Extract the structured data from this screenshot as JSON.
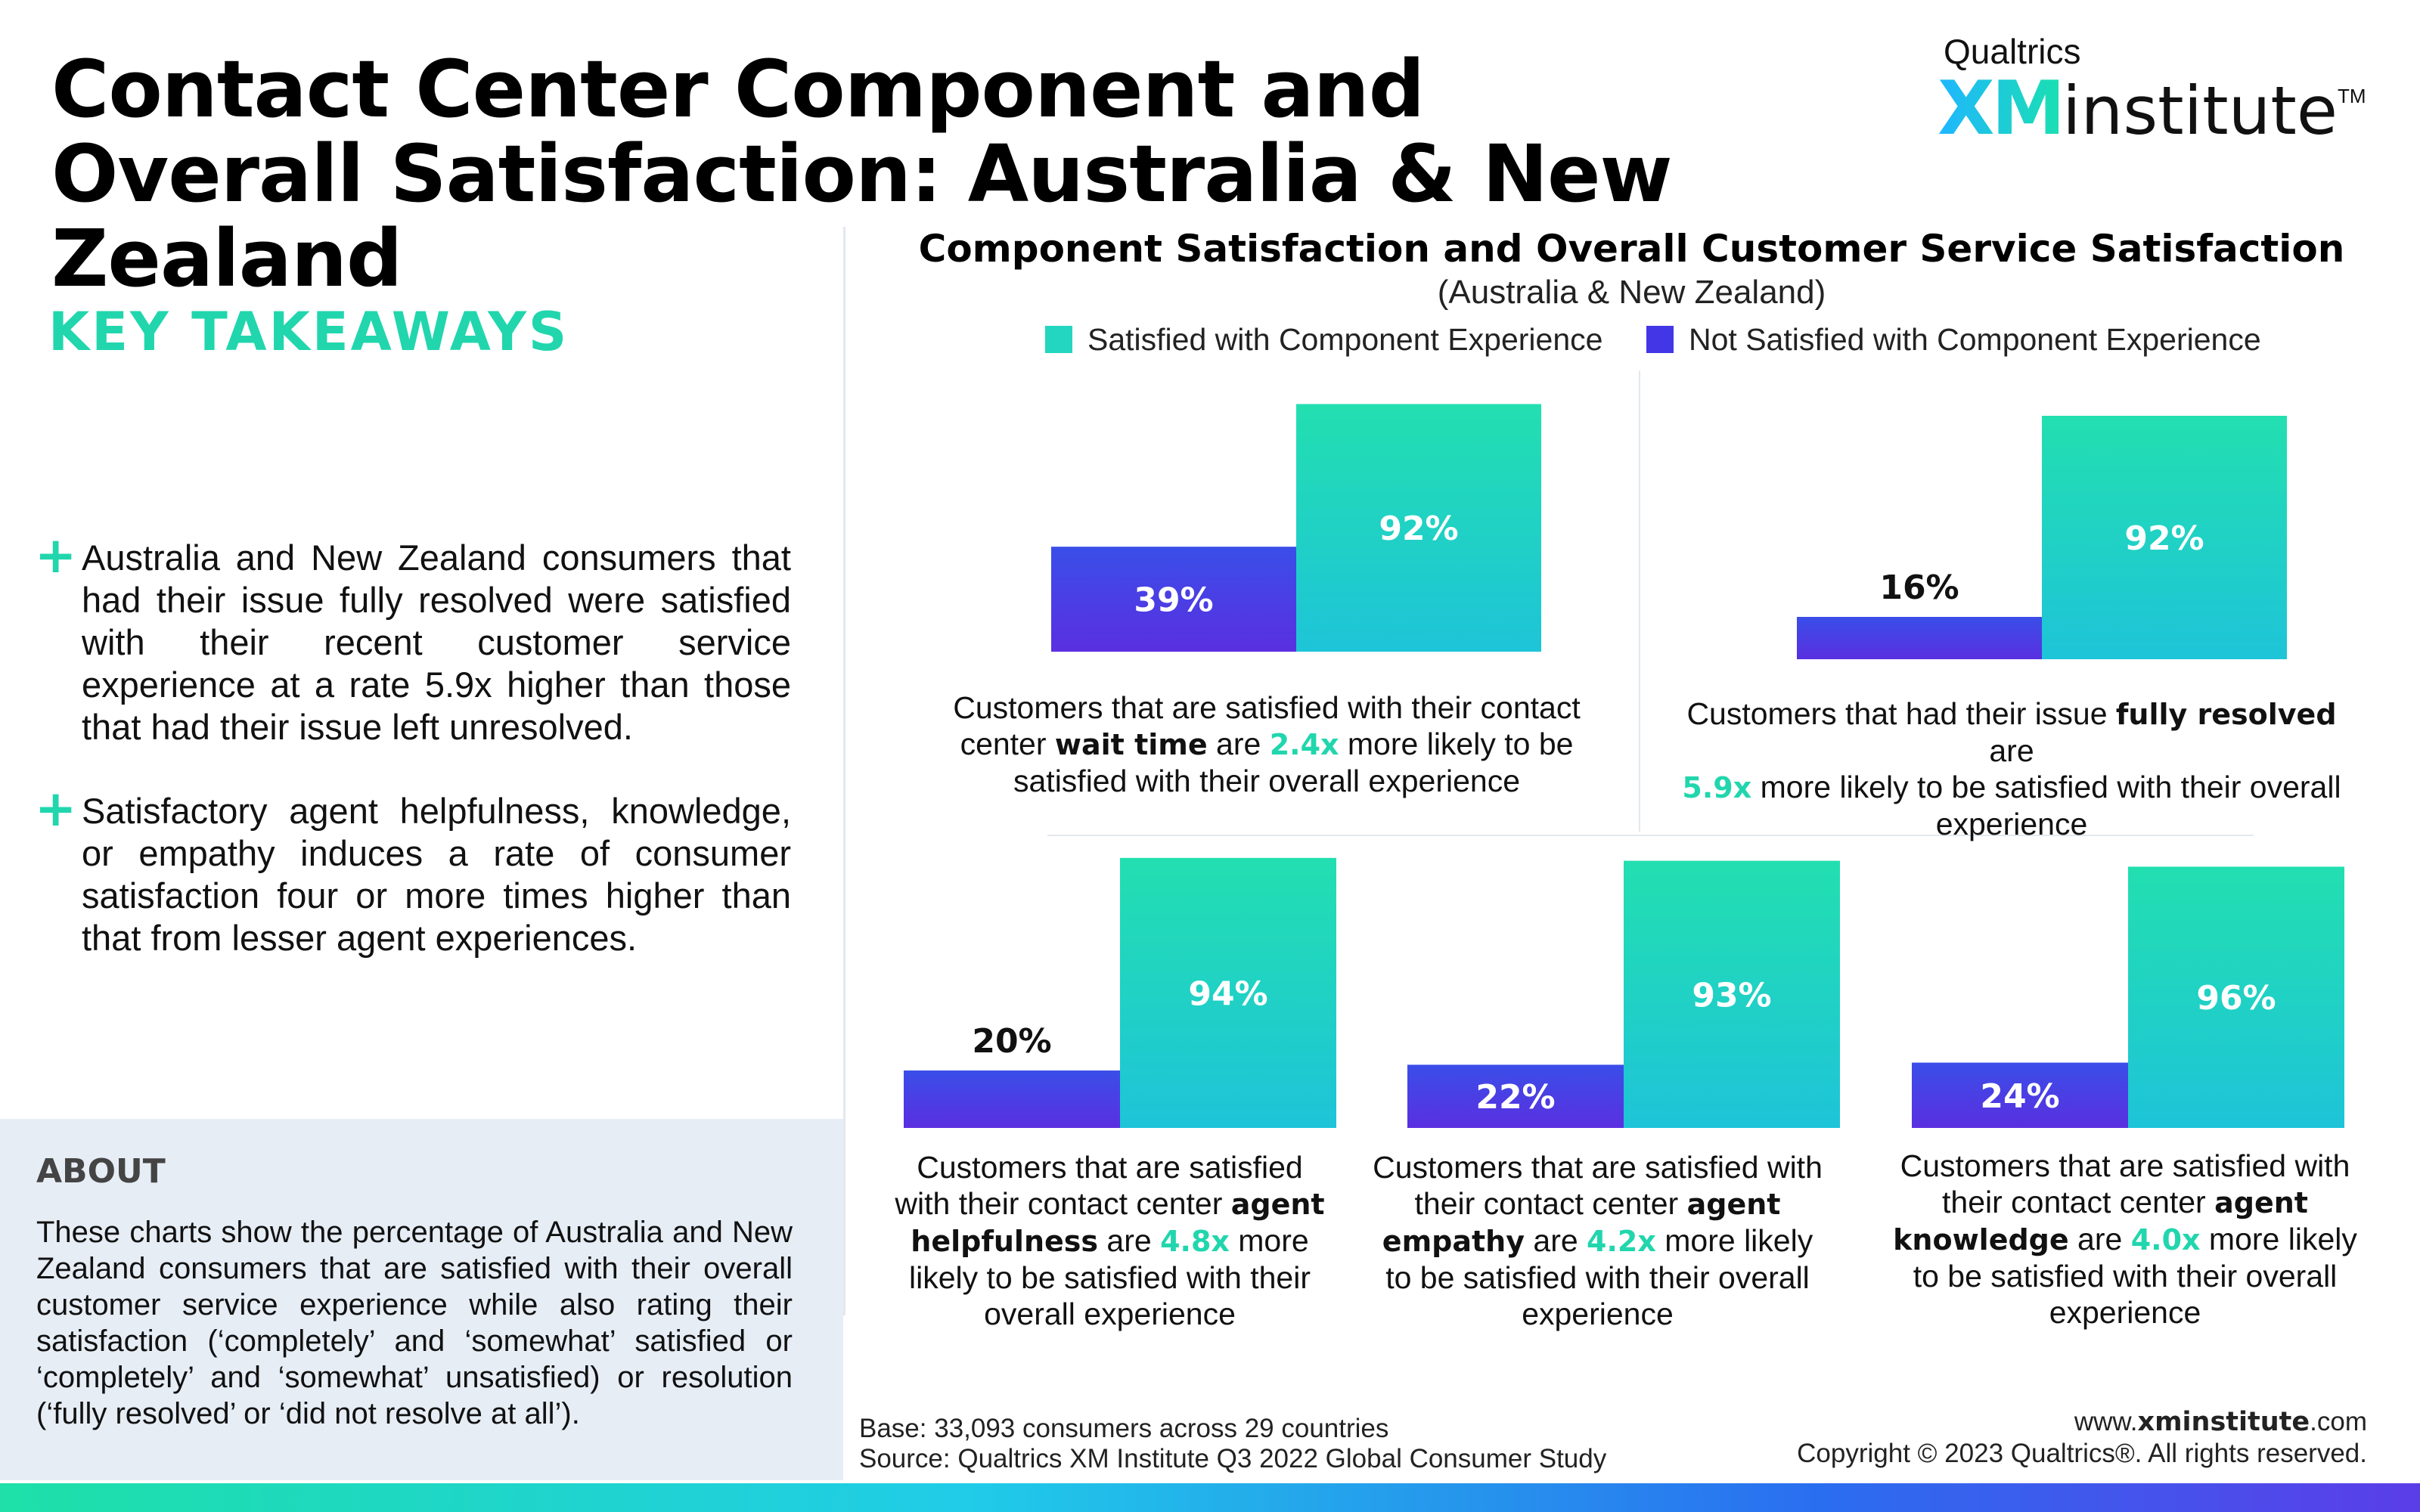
{
  "header": {
    "title": "Contact Center Component and Overall Satisfaction: Australia & New Zealand",
    "logo_top": "Qualtrics",
    "logo_xm": "XM",
    "logo_institute": "institute",
    "logo_tm": "TM"
  },
  "takeaways": {
    "heading": "KEY TAKEAWAYS",
    "items": [
      {
        "icon": "plus-icon",
        "text": "Australia and New Zealand consumers that had their issue fully resolved were satisfied with their recent customer service experience at a rate 5.9x higher than those that had their issue left unresolved."
      },
      {
        "icon": "plus-icon",
        "text": "Satisfactory agent helpfulness, knowledge, or empathy induces a rate of consumer satisfaction four or more times higher than that from lesser agent experiences."
      }
    ]
  },
  "about": {
    "heading": "ABOUT",
    "text": "These charts show the percentage of Australia and New Zealand consumers that are satisfied with their overall customer service experience while also rating their satisfaction (‘completely’ and ‘somewhat’ satisfied or ‘completely’ and ‘somewhat’ unsatisfied) or resolution (‘fully resolved’ or ‘did not resolve at all’)."
  },
  "colors": {
    "satisfied_top": "#22dfb0",
    "satisfied_bottom": "#1ec4d8",
    "not_satisfied_top": "#3a4ee8",
    "not_satisfied_bottom": "#5a2fe0",
    "accent": "#21d6ad"
  },
  "chart_data": {
    "type": "bar",
    "title": "Component Satisfaction and Overall Customer Service Satisfaction",
    "subtitle": "(Australia & New Zealand)",
    "legend": [
      "Satisfied with Component Experience",
      "Not Satisfied with Component Experience"
    ],
    "legend_position": "top",
    "panels": [
      {
        "component": "wait time",
        "values": {
          "satisfied": 92,
          "not_satisfied": 39
        },
        "labels": {
          "satisfied": "92%",
          "not_satisfied": "39%"
        },
        "multiplier": "2.4x",
        "caption": {
          "pre": "Customers that are satisfied with their contact center ",
          "bold": "wait time",
          "mid": " are ",
          "post": " more likely to be satisfied with their overall experience"
        }
      },
      {
        "component": "fully resolved",
        "values": {
          "satisfied": 92,
          "not_satisfied": 16
        },
        "labels": {
          "satisfied": "92%",
          "not_satisfied": "16%"
        },
        "multiplier": "5.9x",
        "caption": {
          "pre": "Customers that had their issue ",
          "bold": "fully resolved",
          "mid": " are ",
          "post": " more likely to be satisfied with their overall experience"
        }
      },
      {
        "component": "agent helpfulness",
        "values": {
          "satisfied": 94,
          "not_satisfied": 20
        },
        "labels": {
          "satisfied": "94%",
          "not_satisfied": "20%"
        },
        "multiplier": "4.8x",
        "caption": {
          "pre": "Customers that are satisfied with their contact center ",
          "bold": "agent helpfulness",
          "mid": " are ",
          "post": " more likely to be satisfied with their overall experience"
        }
      },
      {
        "component": "agent empathy",
        "values": {
          "satisfied": 93,
          "not_satisfied": 22
        },
        "labels": {
          "satisfied": "93%",
          "not_satisfied": "22%"
        },
        "multiplier": "4.2x",
        "caption": {
          "pre": "Customers that are satisfied with their contact center ",
          "bold": "agent empathy",
          "mid": " are ",
          "post": " more likely to be satisfied with their overall experience"
        }
      },
      {
        "component": "agent knowledge",
        "values": {
          "satisfied": 96,
          "not_satisfied": 24
        },
        "labels": {
          "satisfied": "96%",
          "not_satisfied": "24%"
        },
        "multiplier": "4.0x",
        "caption": {
          "pre": "Customers that are satisfied with their contact center ",
          "bold": "agent knowledge",
          "mid": " are ",
          "post": " more likely to be satisfied with their overall experience"
        }
      }
    ]
  },
  "footer": {
    "base": "Base: 33,093 consumers across 29 countries",
    "source": "Source: Qualtrics XM Institute Q3 2022 Global Consumer Study",
    "url_pre": "www.",
    "url_bold": "xminstitute",
    "url_post": ".com",
    "copyright": "Copyright © 2023 Qualtrics®. All rights reserved."
  }
}
